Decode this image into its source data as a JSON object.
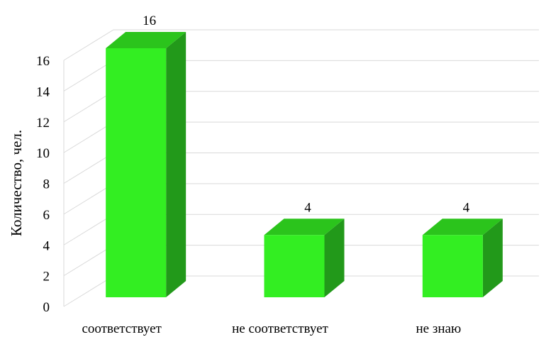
{
  "chart_data": {
    "type": "bar",
    "style": "3d-column",
    "categories": [
      "соответствует",
      "не соответствует",
      "не знаю"
    ],
    "values": [
      16,
      4,
      4
    ],
    "data_labels": [
      "16",
      "4",
      "4"
    ],
    "ylabel": "Количество, чел.",
    "xlabel": "",
    "ylim": [
      0,
      16
    ],
    "yticks": [
      "0",
      "2",
      "4",
      "6",
      "8",
      "10",
      "12",
      "14",
      "16"
    ],
    "grid": true,
    "legend": "none",
    "colors": {
      "front": "#33ee22",
      "side": "#22991a",
      "top": "#2bc41c",
      "grid": "#d9d9d9"
    }
  }
}
